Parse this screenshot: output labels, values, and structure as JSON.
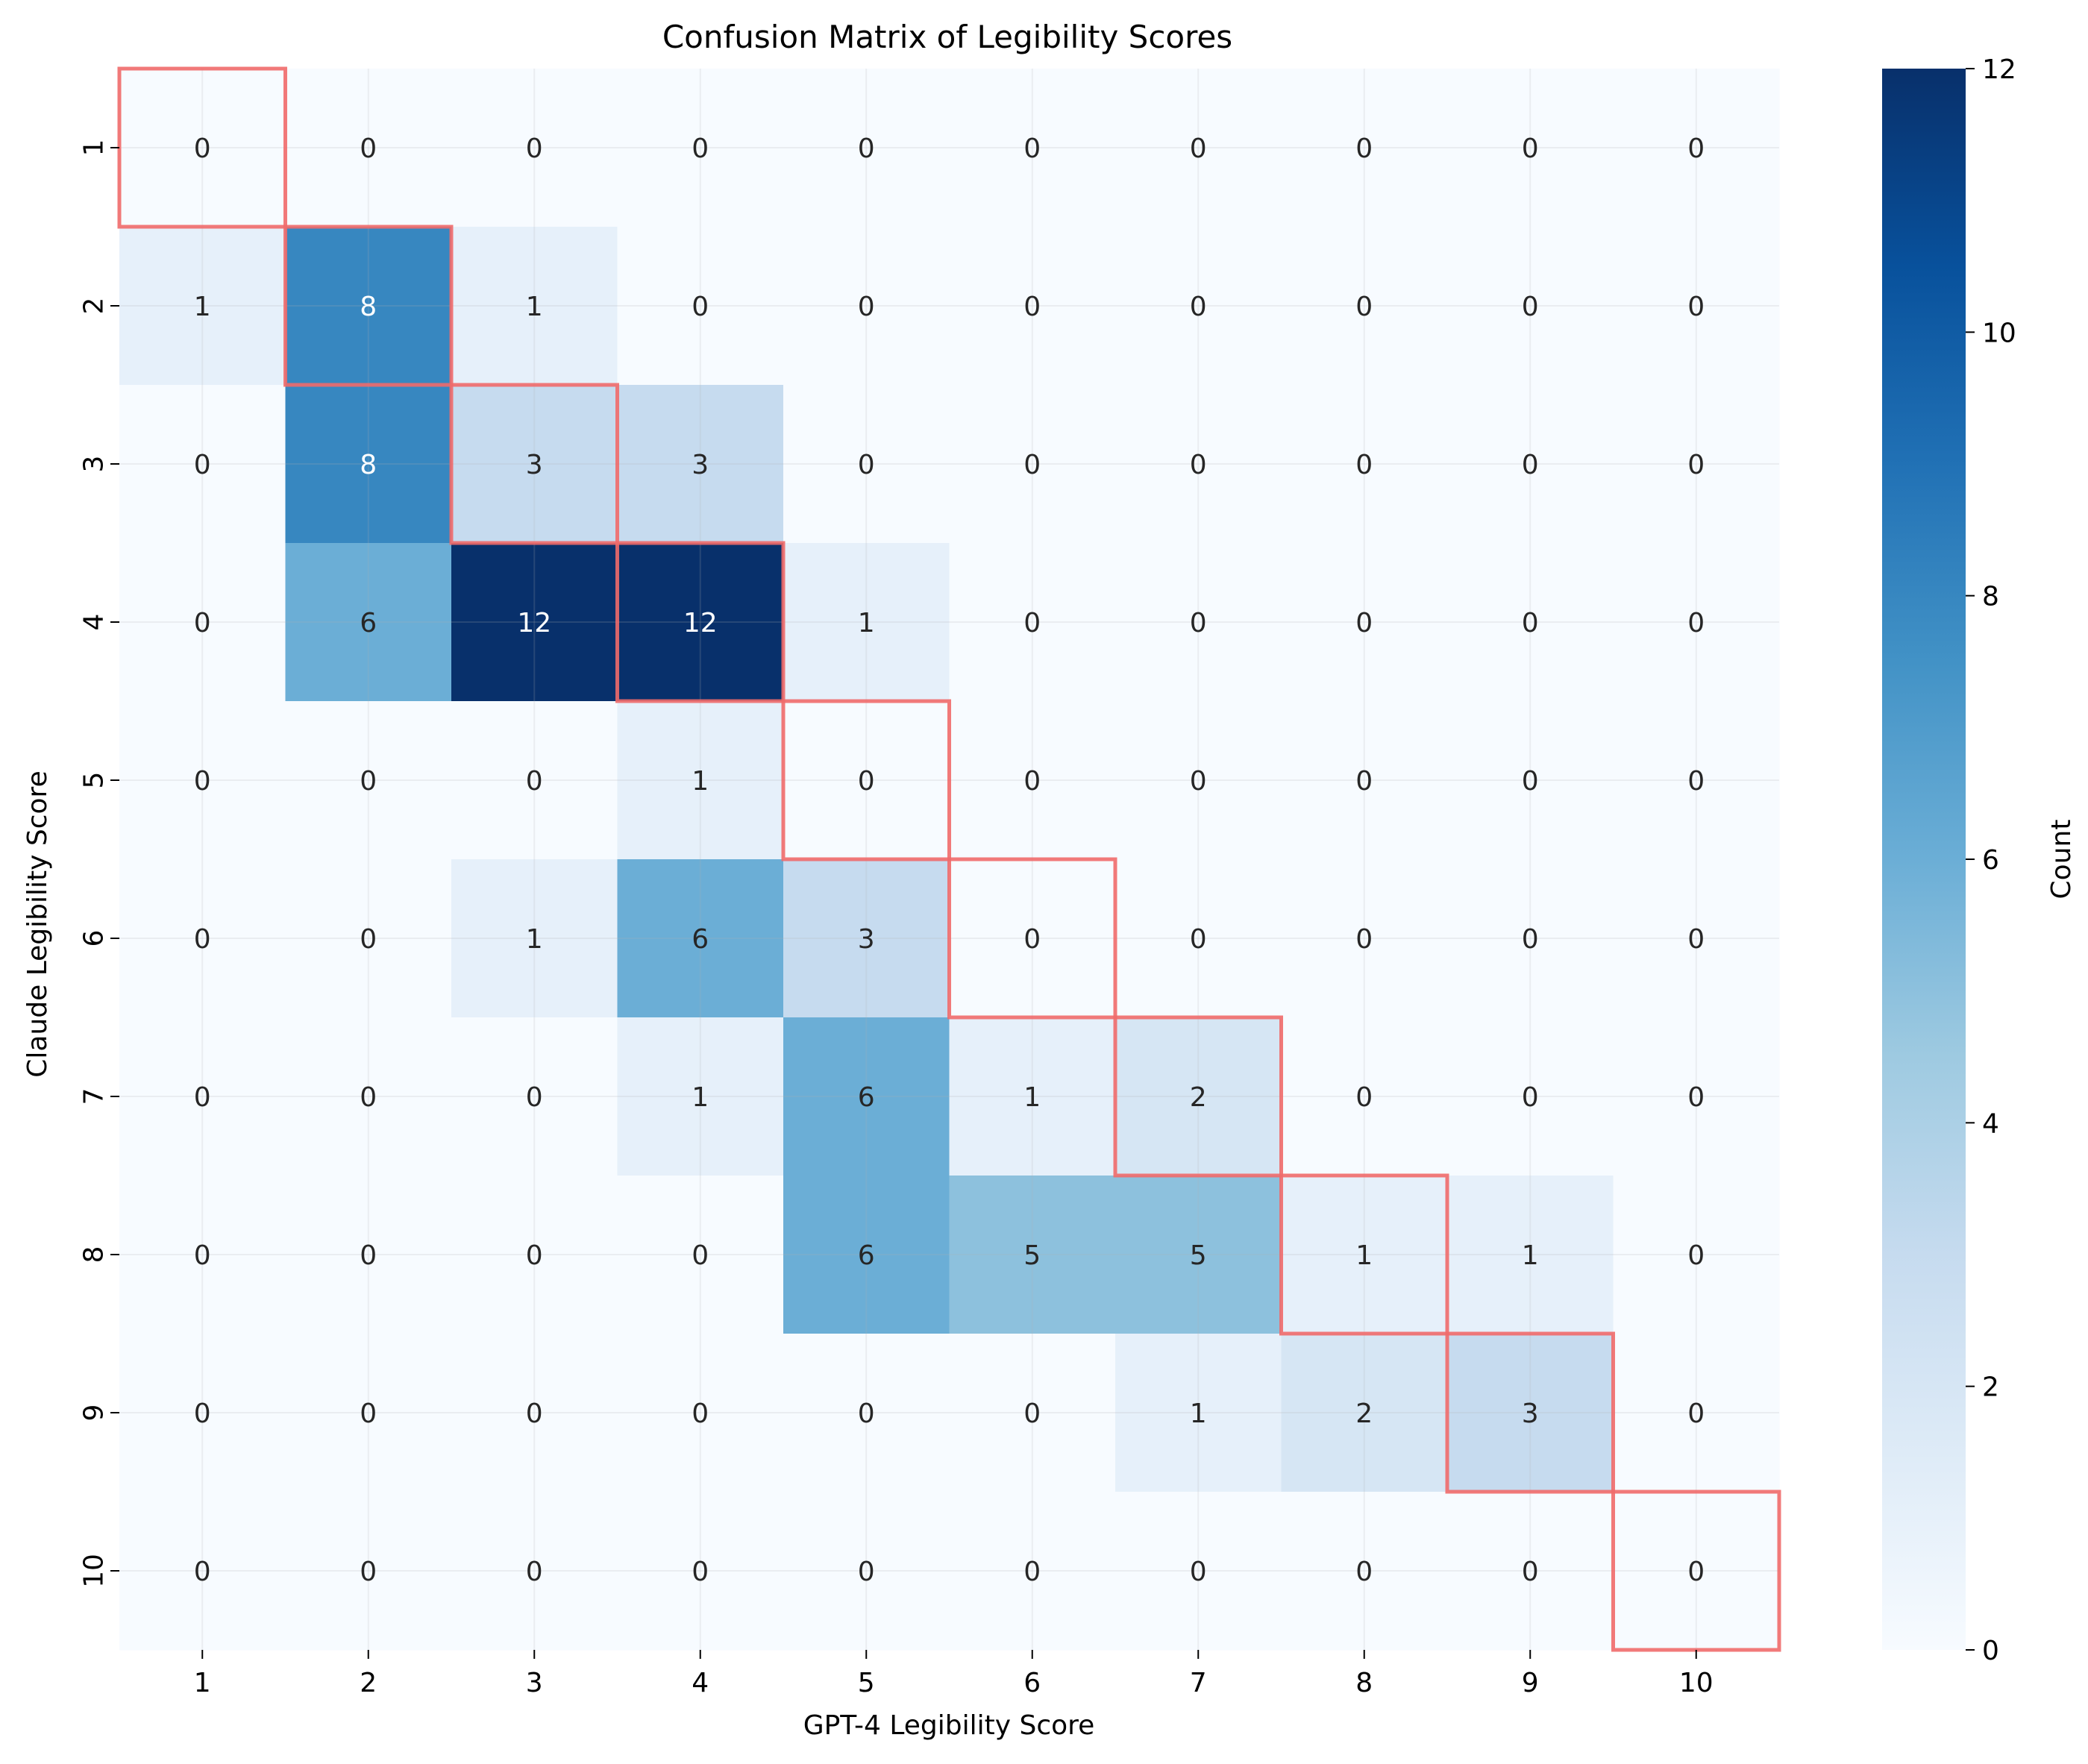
{
  "chart_data": {
    "type": "heatmap",
    "title": "Confusion Matrix of Legibility Scores",
    "xlabel": "GPT-4 Legibility Score",
    "ylabel": "Claude Legibility Score",
    "x_categories": [
      "1",
      "2",
      "3",
      "4",
      "5",
      "6",
      "7",
      "8",
      "9",
      "10"
    ],
    "y_categories": [
      "1",
      "2",
      "3",
      "4",
      "5",
      "6",
      "7",
      "8",
      "9",
      "10"
    ],
    "values": [
      [
        0,
        0,
        0,
        0,
        0,
        0,
        0,
        0,
        0,
        0
      ],
      [
        1,
        8,
        1,
        0,
        0,
        0,
        0,
        0,
        0,
        0
      ],
      [
        0,
        8,
        3,
        3,
        0,
        0,
        0,
        0,
        0,
        0
      ],
      [
        0,
        6,
        12,
        12,
        1,
        0,
        0,
        0,
        0,
        0
      ],
      [
        0,
        0,
        0,
        1,
        0,
        0,
        0,
        0,
        0,
        0
      ],
      [
        0,
        0,
        1,
        6,
        3,
        0,
        0,
        0,
        0,
        0
      ],
      [
        0,
        0,
        0,
        1,
        6,
        1,
        2,
        0,
        0,
        0
      ],
      [
        0,
        0,
        0,
        0,
        6,
        5,
        5,
        1,
        1,
        0
      ],
      [
        0,
        0,
        0,
        0,
        0,
        0,
        1,
        2,
        3,
        0
      ],
      [
        0,
        0,
        0,
        0,
        0,
        0,
        0,
        0,
        0,
        0
      ]
    ],
    "colorbar": {
      "label": "Count",
      "range": [
        0,
        12
      ],
      "ticks": [
        "0",
        "2",
        "4",
        "6",
        "8",
        "10",
        "12"
      ],
      "colormap": "Blues"
    },
    "highlight_diagonal": true,
    "highlight_color": "#f06a6a",
    "grid": true
  }
}
